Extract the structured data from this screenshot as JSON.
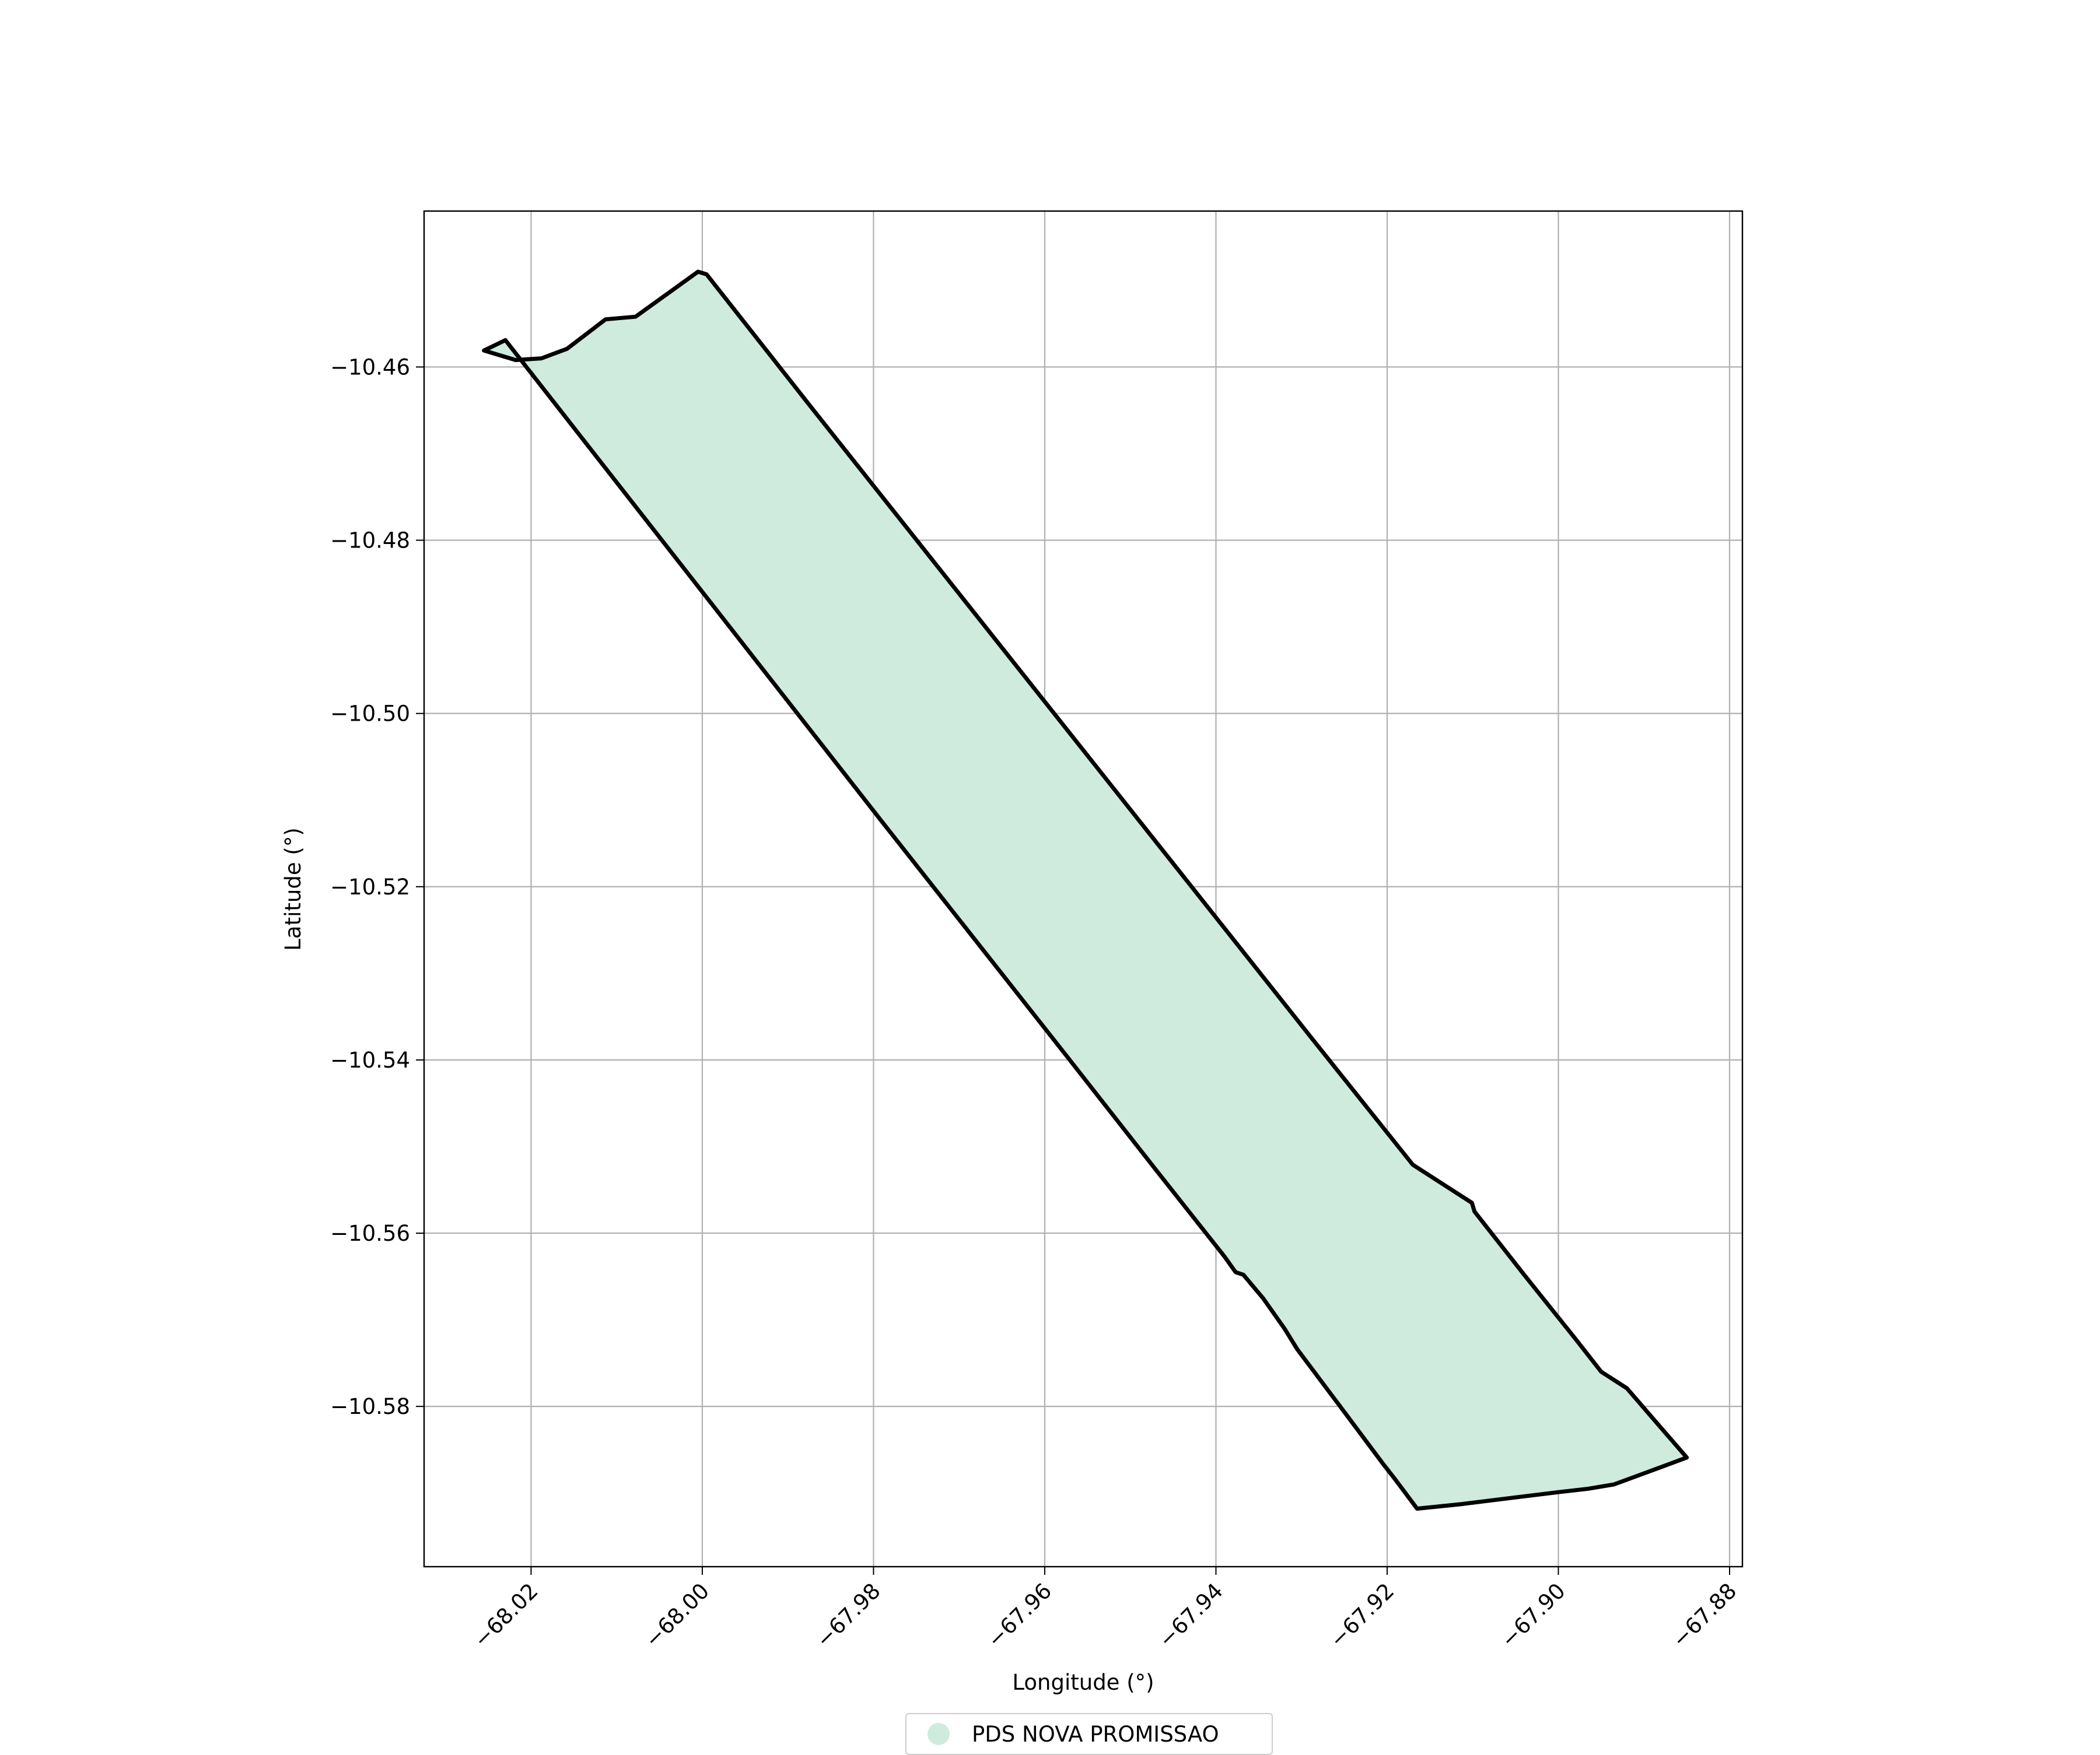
{
  "chart_data": {
    "type": "map",
    "title": "",
    "xlabel": "Longitude (°)",
    "ylabel": "Latitude (°)",
    "xlim": [
      -68.0325,
      -67.8785
    ],
    "ylim": [
      -10.5985,
      -10.442
    ],
    "xticks": [
      -68.02,
      -68.0,
      -67.98,
      -67.96,
      -67.94,
      -67.92,
      -67.9,
      -67.88
    ],
    "xtick_labels": [
      "−68.02",
      "−68.00",
      "−67.98",
      "−67.96",
      "−67.94",
      "−67.92",
      "−67.90",
      "−67.88"
    ],
    "yticks": [
      -10.46,
      -10.48,
      -10.5,
      -10.52,
      -10.54,
      -10.56,
      -10.58
    ],
    "ytick_labels": [
      "−10.46",
      "−10.48",
      "−10.50",
      "−10.52",
      "−10.54",
      "−10.56",
      "−10.58"
    ],
    "grid": true,
    "legend_position": "bottom-center",
    "series": [
      {
        "name": "PDS NOVA PROMISSAO",
        "fill_color": "#cfebde",
        "edge_color": "#000000",
        "polygon": [
          [
            -68.0255,
            -10.4581
          ],
          [
            -68.0218,
            -10.4592
          ],
          [
            -68.0188,
            -10.459
          ],
          [
            -68.0158,
            -10.4579
          ],
          [
            -68.0113,
            -10.4545
          ],
          [
            -68.0078,
            -10.4542
          ],
          [
            -68.0005,
            -10.449
          ],
          [
            -67.9995,
            -10.4493
          ],
          [
            -67.9878,
            -10.464
          ],
          [
            -67.976,
            -10.4787
          ],
          [
            -67.9642,
            -10.4934
          ],
          [
            -67.9524,
            -10.5081
          ],
          [
            -67.9406,
            -10.5228
          ],
          [
            -67.9288,
            -10.5375
          ],
          [
            -67.917,
            -10.5521
          ],
          [
            -67.9101,
            -10.5565
          ],
          [
            -67.9098,
            -10.5575
          ],
          [
            -67.904,
            -10.5648
          ],
          [
            -67.898,
            -10.5722
          ],
          [
            -67.895,
            -10.576
          ],
          [
            -67.892,
            -10.5779
          ],
          [
            -67.8885,
            -10.5819
          ],
          [
            -67.885,
            -10.5859
          ],
          [
            -67.888,
            -10.587
          ],
          [
            -67.8935,
            -10.589
          ],
          [
            -67.8965,
            -10.5895
          ],
          [
            -67.9,
            -10.5899
          ],
          [
            -67.905,
            -10.5905
          ],
          [
            -67.9115,
            -10.5913
          ],
          [
            -67.9165,
            -10.5918
          ],
          [
            -67.919,
            -10.5885
          ],
          [
            -67.9205,
            -10.5866
          ],
          [
            -67.9245,
            -10.5813
          ],
          [
            -67.9305,
            -10.5734
          ],
          [
            -67.932,
            -10.571
          ],
          [
            -67.9345,
            -10.5675
          ],
          [
            -67.9368,
            -10.5648
          ],
          [
            -67.9377,
            -10.5645
          ],
          [
            -67.939,
            -10.5627
          ],
          [
            -67.947,
            -10.5527
          ],
          [
            -67.957,
            -10.5401
          ],
          [
            -67.968,
            -10.5263
          ],
          [
            -67.979,
            -10.5125
          ],
          [
            -67.99,
            -10.4986
          ],
          [
            -68.001,
            -10.4847
          ],
          [
            -68.012,
            -10.4708
          ],
          [
            -68.023,
            -10.4569
          ],
          [
            -68.0255,
            -10.4581
          ]
        ]
      }
    ]
  }
}
